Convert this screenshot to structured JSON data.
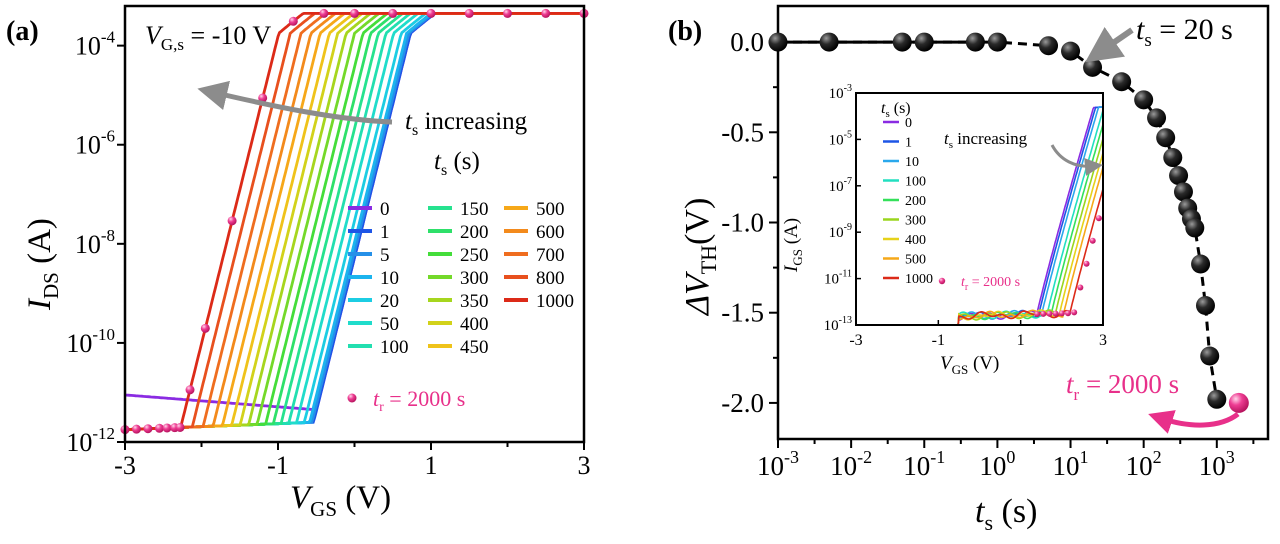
{
  "chart_data": [
    {
      "panel": "(a)",
      "type": "line",
      "yscale": "log",
      "xlim": [
        -3,
        3
      ],
      "ylim_exponent": [
        -12,
        -3.2
      ],
      "xlabel": {
        "main": "V",
        "sub": "GS",
        "unit": " (V)"
      },
      "ylabel": {
        "main": "I",
        "sub": "DS",
        "unit": " (A)"
      },
      "x_ticks": [
        "-3",
        "-1",
        "1",
        "3"
      ],
      "y_ticks": [
        {
          "exp": -12,
          "text": "-12"
        },
        {
          "exp": -10,
          "text": "-10"
        },
        {
          "exp": -8,
          "text": "-8"
        },
        {
          "exp": -6,
          "text": "-6"
        },
        {
          "exp": -4,
          "text": "-4"
        }
      ],
      "tick_base": "10",
      "condition": {
        "main": "V",
        "sub": "G,s",
        "rest": " = -10 V"
      },
      "annotation": {
        "main": "t",
        "sub": "s",
        "rest": " increasing"
      },
      "legend_title": {
        "main": "t",
        "sub": "s",
        "rest": " (s)"
      },
      "series": [
        {
          "name": "0",
          "color": "#8a2be2",
          "vth": -0.6
        },
        {
          "name": "1",
          "color": "#1e55e6",
          "vth": -0.6
        },
        {
          "name": "5",
          "color": "#2590e8",
          "vth": -0.62
        },
        {
          "name": "10",
          "color": "#1cb4ee",
          "vth": -0.65
        },
        {
          "name": "20",
          "color": "#1ccde3",
          "vth": -0.72
        },
        {
          "name": "50",
          "color": "#20dccb",
          "vth": -0.82
        },
        {
          "name": "100",
          "color": "#22dfb0",
          "vth": -0.92
        },
        {
          "name": "150",
          "color": "#26e28f",
          "vth": -1.02
        },
        {
          "name": "200",
          "color": "#2ee06a",
          "vth": -1.12
        },
        {
          "name": "250",
          "color": "#44dd3a",
          "vth": -1.22
        },
        {
          "name": "300",
          "color": "#74d92a",
          "vth": -1.33
        },
        {
          "name": "350",
          "color": "#a6d61e",
          "vth": -1.44
        },
        {
          "name": "400",
          "color": "#d2d21a",
          "vth": -1.55
        },
        {
          "name": "450",
          "color": "#efc31a",
          "vth": -1.66
        },
        {
          "name": "500",
          "color": "#f6a819",
          "vth": -1.78
        },
        {
          "name": "600",
          "color": "#f38a1c",
          "vth": -1.9
        },
        {
          "name": "700",
          "color": "#ef6d1f",
          "vth": -2.03
        },
        {
          "name": "800",
          "color": "#e8501e",
          "vth": -2.17
        },
        {
          "name": "1000",
          "color": "#dc2a18",
          "vth": -2.32
        }
      ],
      "recovery": {
        "label_main": "t",
        "label_sub": "r",
        "label_rest": " = 2000 s",
        "color": "#e8308a",
        "vth": -2.32,
        "x": [
          -3.0,
          -2.85,
          -2.7,
          -2.55,
          -2.45,
          -2.35,
          -2.28,
          -2.15,
          -1.95,
          -1.6,
          -1.2,
          -0.8,
          -0.4,
          0.0,
          0.5,
          1.0,
          1.5,
          2.0,
          2.5,
          3.0
        ]
      }
    },
    {
      "panel": "(b)",
      "type": "scatter",
      "xscale": "log",
      "xlim_exponent": [
        -3,
        3.7
      ],
      "ylim": [
        -2.2,
        0.2
      ],
      "xlabel": {
        "main": "t",
        "sub": "s",
        "unit": " (s)"
      },
      "ylabel": {
        "main": "ΔV",
        "sub": "TH",
        "unit": "(V)"
      },
      "x_ticks": [
        {
          "exp": -3,
          "text": "-3"
        },
        {
          "exp": -2,
          "text": "-2"
        },
        {
          "exp": -1,
          "text": "-1"
        },
        {
          "exp": 0,
          "text": "0"
        },
        {
          "exp": 1,
          "text": "1"
        },
        {
          "exp": 2,
          "text": "2"
        },
        {
          "exp": 3,
          "text": "3"
        }
      ],
      "tick_base": "10",
      "y_ticks": [
        {
          "v": 0,
          "text": "0.0"
        },
        {
          "v": -0.5,
          "text": "-0.5"
        },
        {
          "v": -1.0,
          "text": "-1.0"
        },
        {
          "v": -1.5,
          "text": "-1.5"
        },
        {
          "v": -2.0,
          "text": "-2.0"
        }
      ],
      "points_t": [
        0.001,
        0.005,
        0.05,
        0.1,
        0.5,
        1,
        5,
        10,
        20,
        50,
        100,
        150,
        200,
        250,
        300,
        350,
        400,
        450,
        500,
        600,
        700,
        800,
        1000
      ],
      "points_dvth": [
        0.0,
        0.0,
        0.0,
        0.0,
        0.0,
        0.0,
        -0.02,
        -0.05,
        -0.14,
        -0.22,
        -0.32,
        -0.42,
        -0.53,
        -0.64,
        -0.74,
        -0.83,
        -0.92,
        -0.98,
        -1.03,
        -1.23,
        -1.46,
        -1.74,
        -1.98
      ],
      "annotation_ts": {
        "main": "t",
        "sub": "s",
        "rest": " = 20 s"
      },
      "recovery": {
        "t": 2000,
        "dvth": -2.0,
        "color": "#e8308a",
        "label_main": "t",
        "label_sub": "r",
        "label_rest": " = 2000 s"
      },
      "inset": {
        "type": "line",
        "yscale": "log",
        "xlim": [
          -3,
          3
        ],
        "ylim_exponent": [
          -13,
          -3
        ],
        "x_ticks": [
          "-3",
          "-1",
          "1",
          "3"
        ],
        "y_ticks": [
          {
            "exp": -13,
            "text": "-13"
          },
          {
            "exp": -11,
            "text": "-11"
          },
          {
            "exp": -9,
            "text": "-9"
          },
          {
            "exp": -7,
            "text": "-7"
          },
          {
            "exp": -5,
            "text": "-5"
          },
          {
            "exp": -3,
            "text": "-3"
          }
        ],
        "xlabel": {
          "main": "V",
          "sub": "GS",
          "unit": " (V)"
        },
        "ylabel": {
          "main": "I",
          "sub": "GS",
          "unit": " (A)"
        },
        "legend_title": {
          "main": "t",
          "sub": "s",
          "rest": " (s)"
        },
        "annotation": {
          "main": "t",
          "sub": "s",
          "rest": " increasing"
        },
        "series": [
          {
            "name": "0",
            "color": "#8a2be2",
            "von": 1.3
          },
          {
            "name": "1",
            "color": "#1e55e6",
            "von": 1.35
          },
          {
            "name": "10",
            "color": "#2aa8ec",
            "von": 1.42
          },
          {
            "name": "100",
            "color": "#22dfc0",
            "von": 1.55
          },
          {
            "name": "200",
            "color": "#34e05a",
            "von": 1.65
          },
          {
            "name": "300",
            "color": "#9ad51e",
            "von": 1.75
          },
          {
            "name": "400",
            "color": "#e6d21a",
            "von": 1.85
          },
          {
            "name": "500",
            "color": "#f6a819",
            "von": 1.95
          },
          {
            "name": "1000",
            "color": "#dc2a18",
            "von": 2.1
          }
        ],
        "recovery": {
          "label_main": "t",
          "label_sub": "r",
          "label_rest": " = 2000 s",
          "color": "#e8308a",
          "x": [
            1.4,
            1.55,
            1.7,
            1.85,
            2.0,
            2.15,
            2.3,
            2.45,
            2.6,
            2.75,
            2.9
          ]
        }
      }
    }
  ]
}
